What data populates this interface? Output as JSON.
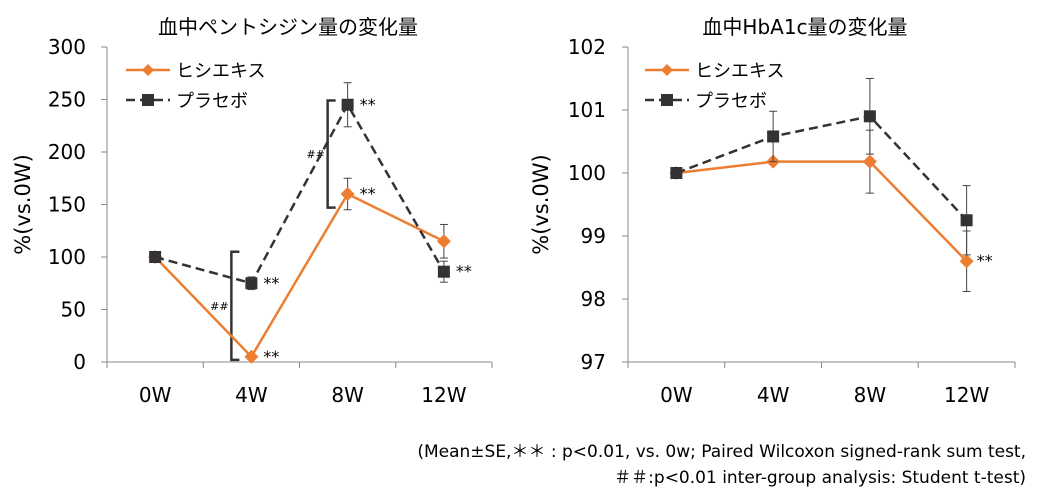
{
  "chart_data": [
    {
      "type": "line",
      "title": "血中ペントシジン量の変化量",
      "ylabel": "%(vs.0W)",
      "xlabel": "",
      "categories": [
        "0W",
        "4W",
        "8W",
        "12W"
      ],
      "ylim": [
        0,
        300
      ],
      "yticks": [
        0,
        50,
        100,
        150,
        200,
        250,
        300
      ],
      "legend_position": "top-left",
      "grid": false,
      "series": [
        {
          "name": "ヒシエキス",
          "color": "#ED7D31",
          "dash": false,
          "marker": "diamond",
          "values": [
            100,
            5,
            160,
            115
          ],
          "errors": [
            0,
            0,
            15,
            16
          ]
        },
        {
          "name": "プラセボ",
          "color": "#333333",
          "dash": true,
          "marker": "square",
          "values": [
            100,
            75,
            245,
            86
          ],
          "errors": [
            0,
            6,
            21,
            10
          ]
        }
      ],
      "annotations": [
        {
          "series": 0,
          "index": 1,
          "text": "**"
        },
        {
          "series": 1,
          "index": 1,
          "text": "**"
        },
        {
          "series": 0,
          "index": 2,
          "text": "**"
        },
        {
          "series": 1,
          "index": 2,
          "text": "**"
        },
        {
          "series": 1,
          "index": 3,
          "text": "**"
        }
      ],
      "brackets": [
        {
          "index": 1,
          "from": 2,
          "to": 105,
          "text": "##"
        },
        {
          "index": 2,
          "from": 147,
          "to": 249,
          "text": "##"
        }
      ]
    },
    {
      "type": "line",
      "title": "血中HbA1c量の変化量",
      "ylabel": "%(vs.0W)",
      "xlabel": "",
      "categories": [
        "0W",
        "4W",
        "8W",
        "12W"
      ],
      "ylim": [
        97,
        102
      ],
      "yticks": [
        97,
        98,
        99,
        100,
        101,
        102
      ],
      "legend_position": "top-left",
      "grid": false,
      "series": [
        {
          "name": "ヒシエキス",
          "color": "#ED7D31",
          "dash": false,
          "marker": "diamond",
          "values": [
            100,
            100.18,
            100.18,
            98.6
          ],
          "errors": [
            0,
            0,
            0.5,
            0.48
          ]
        },
        {
          "name": "プラセボ",
          "color": "#333333",
          "dash": true,
          "marker": "square",
          "values": [
            100,
            100.58,
            100.9,
            99.25
          ],
          "errors": [
            0,
            0.4,
            0.6,
            0.55
          ]
        }
      ],
      "annotations": [
        {
          "series": 0,
          "index": 3,
          "text": "**"
        }
      ],
      "brackets": []
    }
  ],
  "footnote": {
    "line1": "(Mean±SE,＊＊ : p<0.01, vs. 0w; Paired Wilcoxon signed-rank sum test,",
    "line2": "＃＃:p<0.01 inter-group analysis: Student t-test)"
  }
}
